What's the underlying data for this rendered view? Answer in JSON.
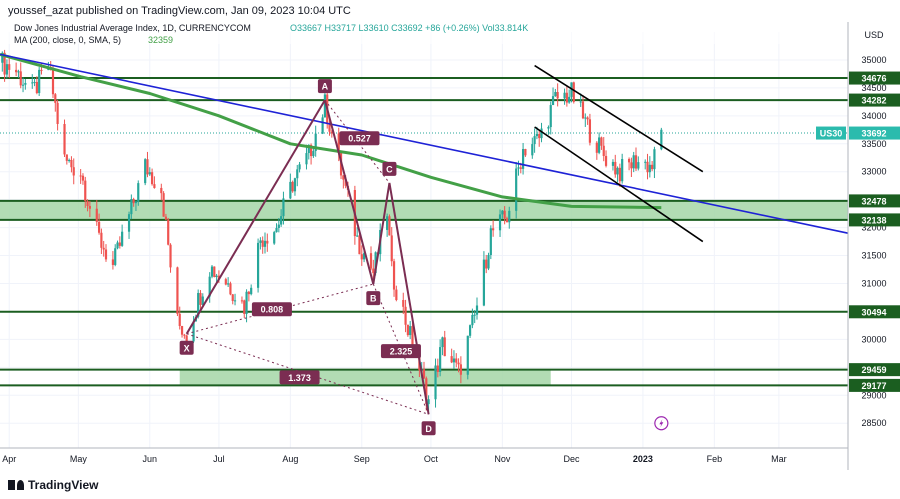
{
  "header": {
    "text": "youssef_azat published on TradingView.com, Jan 09, 2023 10:04 UTC"
  },
  "footer": {
    "brand": "TradingView"
  },
  "chart_data": {
    "type": "candlestick",
    "title": "Dow Jones Industrial Average Index, 1D, CURRENCYCOM",
    "ohlc_label": "O33667 H33717 L33610 C33692 +86 (+0.26%) Vol33.814K",
    "ma_label": "MA (200, close, 0, SMA, 5)",
    "ma_value": "32359",
    "currency": "USD",
    "ylim": [
      28200,
      35500
    ],
    "y_ticks": [
      28500,
      29000,
      29500,
      30000,
      30500,
      31000,
      31500,
      32000,
      32500,
      33000,
      33500,
      34000,
      34500,
      35000
    ],
    "x_ticks": [
      "Apr",
      "May",
      "Jun",
      "Jul",
      "Aug",
      "Sep",
      "Oct",
      "Nov",
      "Dec",
      "2023",
      "Feb",
      "Mar"
    ],
    "symbol_tag": "US30",
    "last_price": 33692,
    "level_tags": [
      34676,
      34282,
      32478,
      32138,
      30494,
      29459,
      29177
    ],
    "horizontal_lines": [
      34676,
      34282,
      32478,
      32138,
      30494,
      29459,
      29177
    ],
    "zones": [
      {
        "from_date": "2022-03-28",
        "to_date": "2023-03-31",
        "low": 32138,
        "high": 32478
      },
      {
        "from_date": "2022-06-14",
        "to_date": "2022-11-22",
        "low": 29177,
        "high": 29459
      }
    ],
    "pattern_points": [
      {
        "label": "X",
        "date": "2022-06-17",
        "price": 30100
      },
      {
        "label": "A",
        "date": "2022-08-16",
        "price": 34282
      },
      {
        "label": "B",
        "date": "2022-09-06",
        "price": 30990
      },
      {
        "label": "C",
        "date": "2022-09-13",
        "price": 32800
      },
      {
        "label": "D",
        "date": "2022-09-30",
        "price": 28660
      }
    ],
    "ratios": [
      {
        "label": "0.527",
        "date": "2022-08-31",
        "price": 33600
      },
      {
        "label": "C",
        "date": "2022-09-13",
        "price": 32800
      },
      {
        "label": "0.808",
        "date": "2022-07-24",
        "price": 30540
      },
      {
        "label": "2.325",
        "date": "2022-09-18",
        "price": 29790
      },
      {
        "label": "1.373",
        "date": "2022-08-05",
        "price": 29320
      }
    ],
    "trendline": {
      "date1": "2022-03-28",
      "price1": 35100,
      "date2": "2023-03-31",
      "price2": 31900
    },
    "channel_upper": {
      "date1": "2022-11-15",
      "price1": 34900,
      "date2": "2023-01-27",
      "price2": 33000
    },
    "channel_lower": {
      "date1": "2022-11-15",
      "price1": 33800,
      "date2": "2023-01-27",
      "price2": 31750
    },
    "ma200": [
      {
        "date": "2022-03-28",
        "price": 35100
      },
      {
        "date": "2022-05-02",
        "price": 34700
      },
      {
        "date": "2022-06-01",
        "price": 34400
      },
      {
        "date": "2022-07-01",
        "price": 34000
      },
      {
        "date": "2022-08-01",
        "price": 33500
      },
      {
        "date": "2022-09-01",
        "price": 33300
      },
      {
        "date": "2022-10-01",
        "price": 32900
      },
      {
        "date": "2022-11-01",
        "price": 32550
      },
      {
        "date": "2022-12-01",
        "price": 32380
      },
      {
        "date": "2023-01-09",
        "price": 32359
      }
    ],
    "price_path": [
      {
        "date": "2022-03-29",
        "price": 34950
      },
      {
        "date": "2022-04-04",
        "price": 34800
      },
      {
        "date": "2022-04-11",
        "price": 34400
      },
      {
        "date": "2022-04-18",
        "price": 34900
      },
      {
        "date": "2022-04-25",
        "price": 33200
      },
      {
        "date": "2022-05-02",
        "price": 33000
      },
      {
        "date": "2022-05-09",
        "price": 31900
      },
      {
        "date": "2022-05-16",
        "price": 31300
      },
      {
        "date": "2022-05-23",
        "price": 32200
      },
      {
        "date": "2022-05-30",
        "price": 33100
      },
      {
        "date": "2022-06-06",
        "price": 32700
      },
      {
        "date": "2022-06-13",
        "price": 30300
      },
      {
        "date": "2022-06-17",
        "price": 30100
      },
      {
        "date": "2022-06-27",
        "price": 31300
      },
      {
        "date": "2022-07-05",
        "price": 31000
      },
      {
        "date": "2022-07-12",
        "price": 30600
      },
      {
        "date": "2022-07-19",
        "price": 31800
      },
      {
        "date": "2022-07-26",
        "price": 32000
      },
      {
        "date": "2022-08-02",
        "price": 32800
      },
      {
        "date": "2022-08-09",
        "price": 33300
      },
      {
        "date": "2022-08-16",
        "price": 34200
      },
      {
        "date": "2022-08-23",
        "price": 33000
      },
      {
        "date": "2022-08-30",
        "price": 31800
      },
      {
        "date": "2022-09-06",
        "price": 31200
      },
      {
        "date": "2022-09-12",
        "price": 32300
      },
      {
        "date": "2022-09-14",
        "price": 31200
      },
      {
        "date": "2022-09-21",
        "price": 30200
      },
      {
        "date": "2022-09-30",
        "price": 28900
      },
      {
        "date": "2022-10-06",
        "price": 29900
      },
      {
        "date": "2022-10-13",
        "price": 29400
      },
      {
        "date": "2022-10-20",
        "price": 30400
      },
      {
        "date": "2022-10-27",
        "price": 31900
      },
      {
        "date": "2022-11-03",
        "price": 32200
      },
      {
        "date": "2022-11-10",
        "price": 33400
      },
      {
        "date": "2022-11-17",
        "price": 33600
      },
      {
        "date": "2022-11-24",
        "price": 34300
      },
      {
        "date": "2022-12-01",
        "price": 34400
      },
      {
        "date": "2022-12-08",
        "price": 33800
      },
      {
        "date": "2022-12-15",
        "price": 33300
      },
      {
        "date": "2022-12-22",
        "price": 33000
      },
      {
        "date": "2022-12-29",
        "price": 33200
      },
      {
        "date": "2023-01-05",
        "price": 33100
      },
      {
        "date": "2023-01-09",
        "price": 33692
      }
    ],
    "colors": {
      "up": "#26a69a",
      "down": "#ef5350",
      "ma": "#43a047",
      "trendline": "#1e22d6",
      "levels": "#1b5e20",
      "zone": "#a5d6a7",
      "pattern": "#7b2d52",
      "channel": "#000000",
      "symbol_tag": "#2bbbad"
    }
  }
}
